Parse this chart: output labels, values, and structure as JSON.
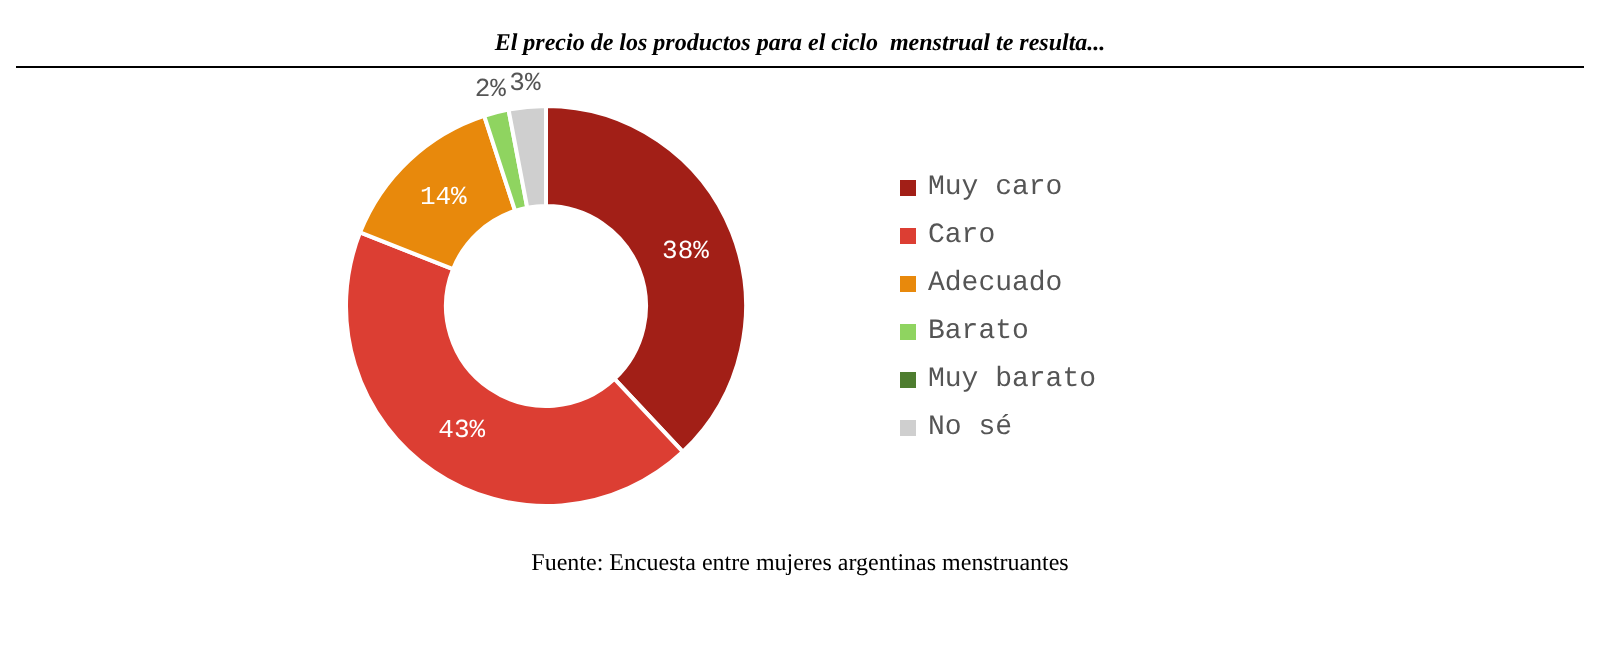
{
  "chart_data": {
    "type": "donut",
    "title": "El precio de los productos para el ciclo  menstrual te resulta...",
    "categories": [
      "Muy caro",
      "Caro",
      "Adecuado",
      "Barato",
      "Muy barato",
      "No sé"
    ],
    "values": [
      38,
      43,
      14,
      2,
      0,
      3
    ],
    "colors": [
      "#a21f17",
      "#dc3e33",
      "#e8890c",
      "#8fd460",
      "#4e7d2f",
      "#cfcfcf"
    ],
    "value_labels": [
      "38%",
      "43%",
      "14%",
      "2%",
      null,
      "3%"
    ],
    "legend": "right",
    "annotations": [
      "Fuente: Encuesta entre mujeres argentinas menstruantes"
    ]
  }
}
